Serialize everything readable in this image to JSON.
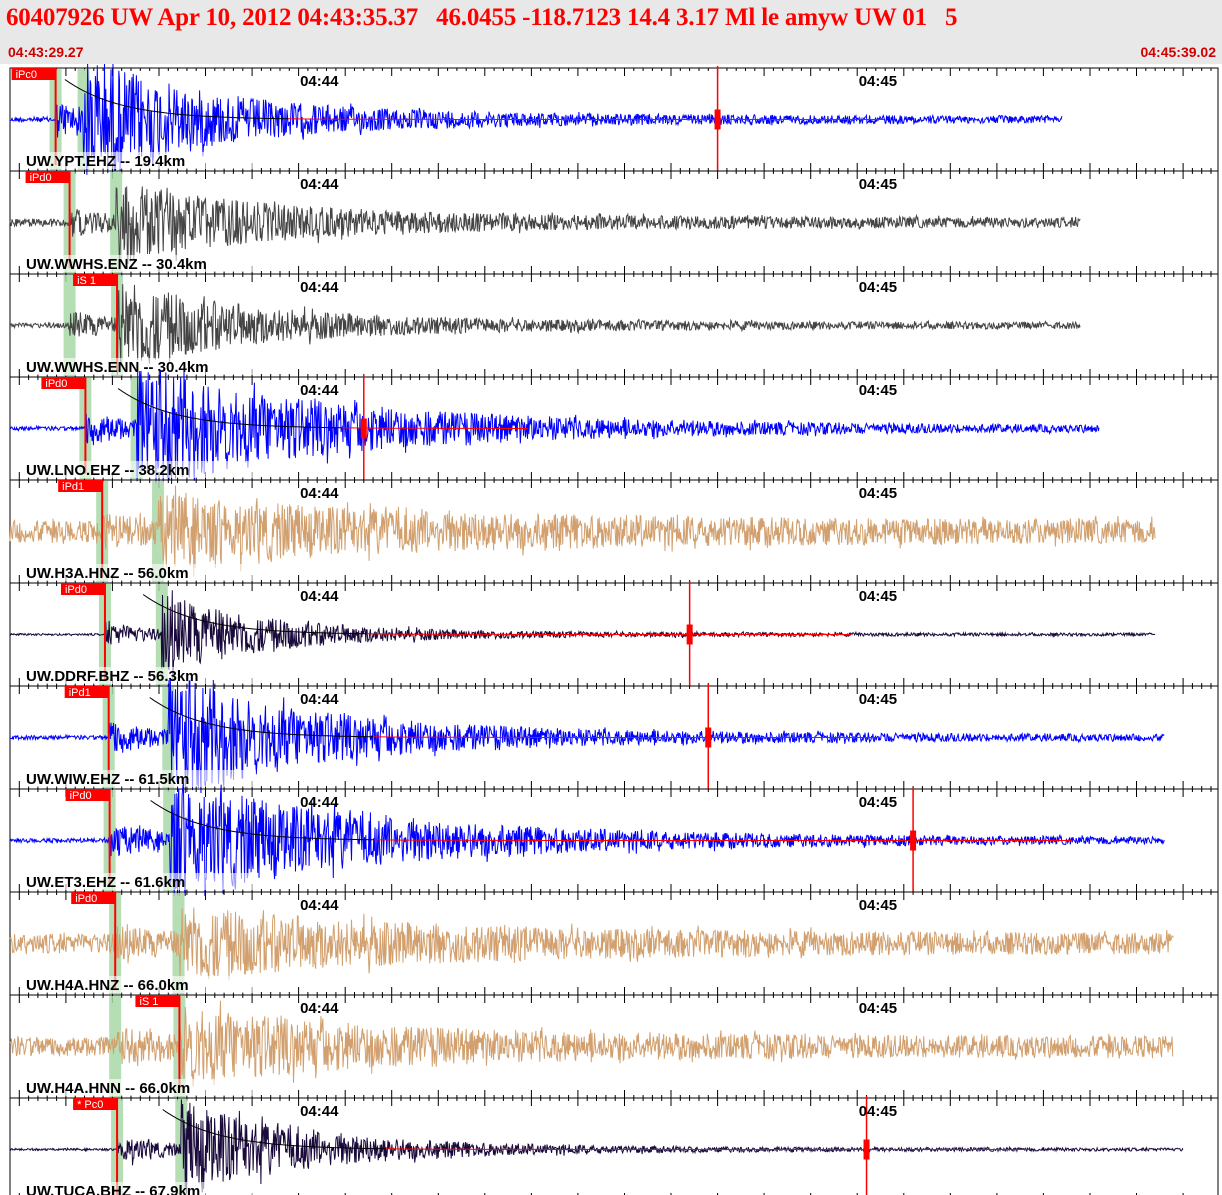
{
  "header": {
    "title": "60407926 UW Apr 10, 2012 04:43:35.37   46.0455 -118.7123 14.4 3.17 Ml le amyw UW 01   5",
    "start_time": "04:43:29.27",
    "end_time": "04:45:39.02"
  },
  "chart_data": {
    "type": "line",
    "title": "60407926 UW Apr 10, 2012 04:43:35.37   46.0455 -118.7123 14.4 3.17 Ml le amyw UW 01   5",
    "x_range": [
      "04:43:29.27",
      "04:45:39.02"
    ],
    "x_tick_labels": [
      "04:44",
      "04:45"
    ],
    "colors": {
      "vertical": "#0000ff",
      "accelerometer": "#888888",
      "strong_motion": "#d2a06e",
      "broadband": "#1a0a3c",
      "pick": "#ff0000",
      "window": "#a8d8a8"
    },
    "traces": [
      {
        "label": "UW.YPT.EHZ -- 19.4km",
        "pick": "iPc0",
        "pick_time": 4.9,
        "s_time": 7.9,
        "end_time": 113,
        "color": "#0000ff",
        "amp": 1.0,
        "noise": 0.05,
        "coda": 0.55,
        "decay": 14,
        "fit": true,
        "max_marker_time": 76
      },
      {
        "label": "UW.WWHS.ENZ -- 30.4km",
        "pick": "iPd0",
        "pick_time": 6.4,
        "s_time": 11.4,
        "end_time": 115,
        "color": "#444444",
        "amp": 0.62,
        "noise": 0.08,
        "coda": 0.45,
        "decay": 16,
        "fit": false
      },
      {
        "label": "UW.WWHS.ENN -- 30.4km",
        "pick": "iS 1",
        "pick_time": 11.5,
        "s_time": 11.5,
        "p_time": 6.4,
        "end_time": 115,
        "color": "#444444",
        "amp": 0.75,
        "noise": 0.05,
        "coda": 0.4,
        "decay": 14,
        "fit": false
      },
      {
        "label": "UW.LNO.EHZ -- 38.2km",
        "pick": "iPd0",
        "pick_time": 8.1,
        "s_time": 13.6,
        "end_time": 117,
        "color": "#0000ff",
        "amp": 1.0,
        "noise": 0.04,
        "coda": 0.6,
        "decay": 22,
        "fit": true,
        "max_marker_time": 38
      },
      {
        "label": "UW.H3A.HNZ -- 56.0km",
        "pick": "iPd1",
        "pick_time": 9.9,
        "s_time": 15.9,
        "end_time": 123,
        "color": "#d2a06e",
        "amp": 0.45,
        "noise": 0.22,
        "coda": 0.25,
        "decay": 30,
        "fit": false
      },
      {
        "label": "UW.DDRF.BHZ -- 56.3km",
        "pick": "iPd0",
        "pick_time": 10.2,
        "s_time": 16.3,
        "end_time": 123,
        "color": "#1a0a3c",
        "amp": 0.7,
        "noise": 0.02,
        "coda": 0.2,
        "decay": 12,
        "fit": true,
        "max_marker_time": 73
      },
      {
        "label": "UW.WIW.EHZ -- 61.5km",
        "pick": "iPd1",
        "pick_time": 10.6,
        "s_time": 17.0,
        "end_time": 124,
        "color": "#0000ff",
        "amp": 1.0,
        "noise": 0.04,
        "coda": 0.65,
        "decay": 16,
        "fit": true,
        "max_marker_time": 75
      },
      {
        "label": "UW.ET3.EHZ -- 61.6km",
        "pick": "iPd0",
        "pick_time": 10.7,
        "s_time": 17.1,
        "end_time": 124,
        "color": "#0000ff",
        "amp": 1.0,
        "noise": 0.04,
        "coda": 0.6,
        "decay": 22,
        "fit": true,
        "max_marker_time": 97
      },
      {
        "label": "UW.H4A.HNZ -- 66.0km",
        "pick": "iPd0",
        "pick_time": 11.3,
        "s_time": 18.1,
        "end_time": 125,
        "color": "#d2a06e",
        "amp": 0.5,
        "noise": 0.2,
        "coda": 0.3,
        "decay": 24,
        "fit": false
      },
      {
        "label": "UW.H4A.HNN -- 66.0km",
        "pick": "iS 1",
        "pick_time": 18.2,
        "s_time": 18.2,
        "p_time": 11.3,
        "end_time": 125,
        "color": "#d2a06e",
        "amp": 0.55,
        "noise": 0.2,
        "coda": 0.3,
        "decay": 20,
        "fit": false
      },
      {
        "label": "UW.TUCA.BHZ -- 67.9km",
        "pick": "* Pc0",
        "pick_time": 11.5,
        "s_time": 18.4,
        "end_time": 126,
        "color": "#1a0a3c",
        "amp": 0.85,
        "noise": 0.02,
        "coda": 0.25,
        "decay": 14,
        "fit": true,
        "max_marker_time": 92
      }
    ]
  }
}
